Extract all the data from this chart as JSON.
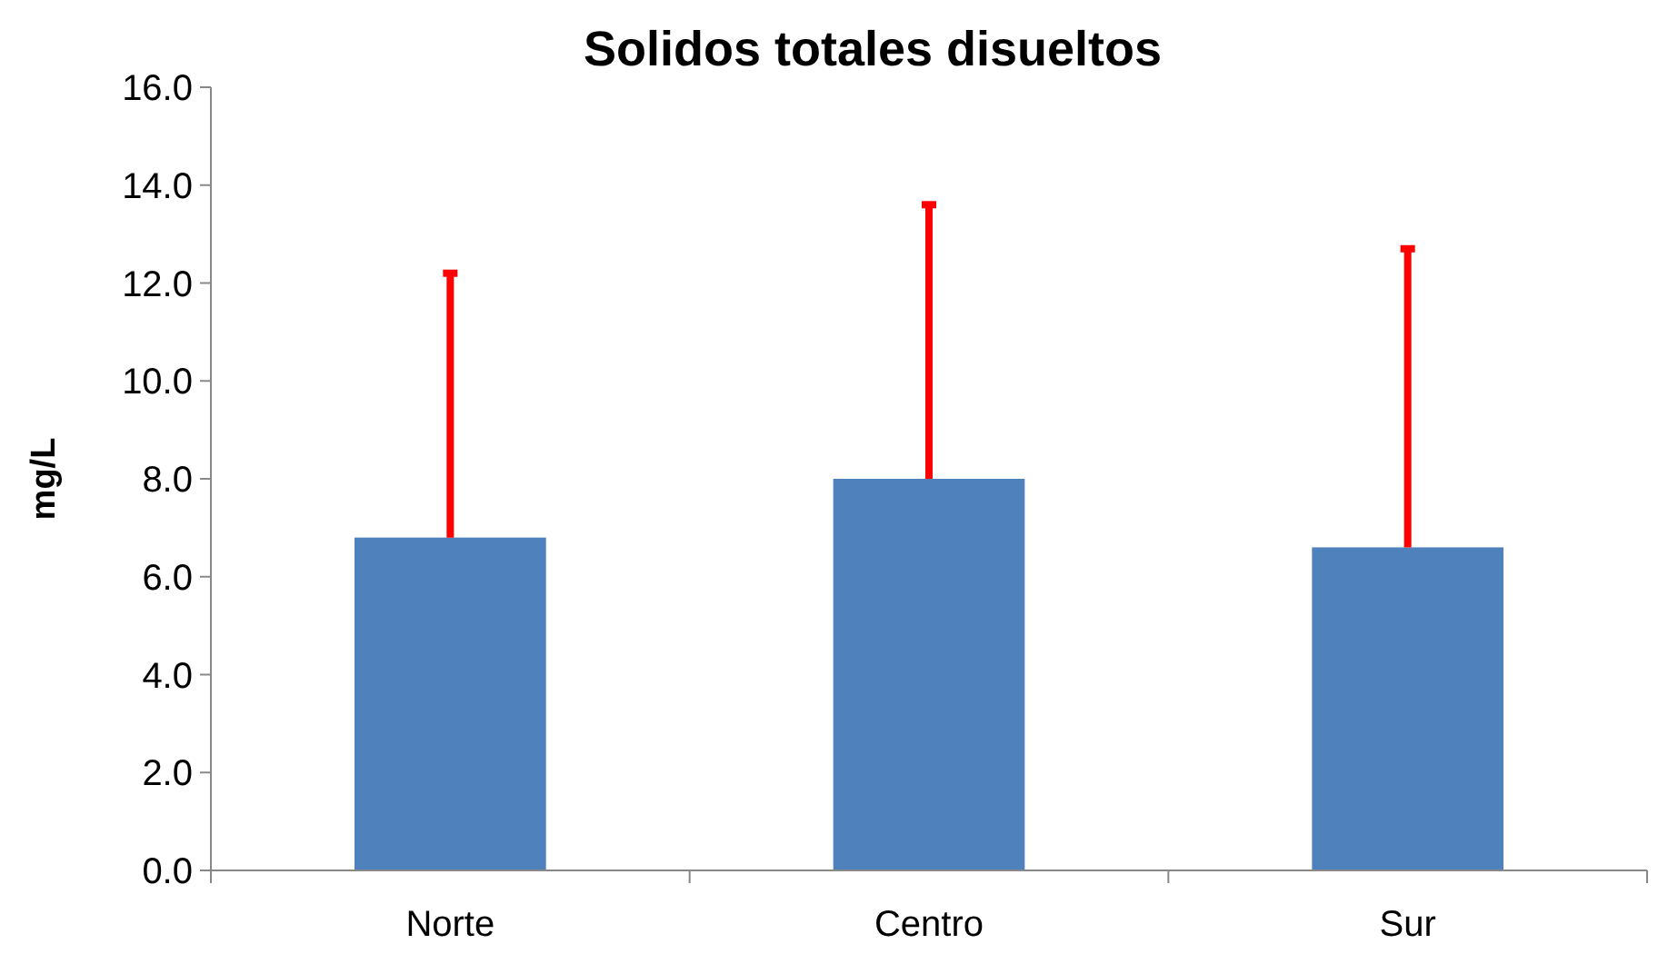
{
  "chart_data": {
    "type": "bar",
    "title": "Solidos totales disueltos",
    "ylabel": "mg/L",
    "categories": [
      "Norte",
      "Centro",
      "Sur"
    ],
    "values": [
      6.8,
      8.0,
      6.6
    ],
    "errors": [
      [
        6.8,
        12.2
      ],
      [
        8.0,
        13.6
      ],
      [
        6.6,
        12.7
      ]
    ],
    "color": "#4f81bd",
    "ylim": [
      0,
      16
    ],
    "yticks": [
      {
        "value": 0,
        "label": "0.0"
      },
      {
        "value": 2,
        "label": "2.0"
      },
      {
        "value": 4,
        "label": "4.0"
      },
      {
        "value": 6,
        "label": "6.0"
      },
      {
        "value": 8,
        "label": "8.0"
      },
      {
        "value": 10,
        "label": "10.0"
      },
      {
        "value": 12,
        "label": "12.0"
      },
      {
        "value": 14,
        "label": "14.0"
      },
      {
        "value": 16,
        "label": "16.0"
      }
    ],
    "grid": false
  }
}
